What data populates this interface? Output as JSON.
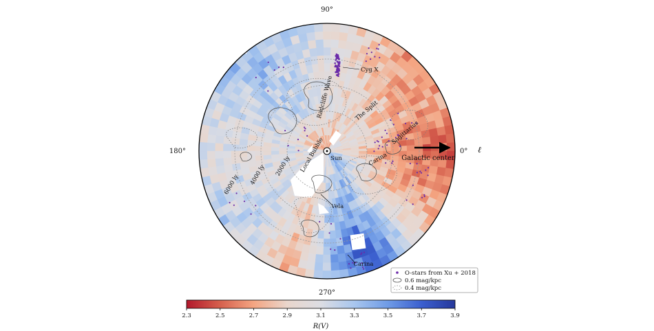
{
  "chart_data": {
    "type": "heatmap",
    "projection": "polar, Sun-centred, Galactic plane (top-down)",
    "angle_labels": {
      "top": "90°",
      "left": "180°",
      "right": "0°",
      "bottom": "270°"
    },
    "angle_axis_symbol": "ℓ",
    "distance_rings": [
      "2000 ly",
      "4000 ly",
      "6000 ly"
    ],
    "region_labels": {
      "sun": "Sun",
      "local_bubble": "Local Bubble",
      "radcliffe_wave": "Radcliffe Wave",
      "the_split": "The Split",
      "sagittarius": "Sagittarius",
      "carina_near": "Carina",
      "carina_far": "Carina",
      "cyg_x": "Cyg X",
      "vela": "Vela",
      "galactic_center": "Galactic center"
    },
    "legend": [
      {
        "label": "O-stars from Xu + 2018",
        "marker": "dot"
      },
      {
        "label": "0.6 mag/kpc",
        "marker": "solid-contour"
      },
      {
        "label": "0.4 mag/kpc",
        "marker": "dotted-contour"
      }
    ],
    "colorbar": {
      "label": "R(V)",
      "min": 2.3,
      "max": 3.9,
      "ticks": [
        "2.3",
        "2.5",
        "2.7",
        "2.9",
        "3.1",
        "3.3",
        "3.5",
        "3.7",
        "3.9"
      ],
      "colors": [
        "#b2182b",
        "#d6604d",
        "#f4a582",
        "#e9d6cc",
        "#dcdde3",
        "#a8c6ee",
        "#6f9be6",
        "#3b5fcf",
        "#26389b"
      ]
    }
  }
}
